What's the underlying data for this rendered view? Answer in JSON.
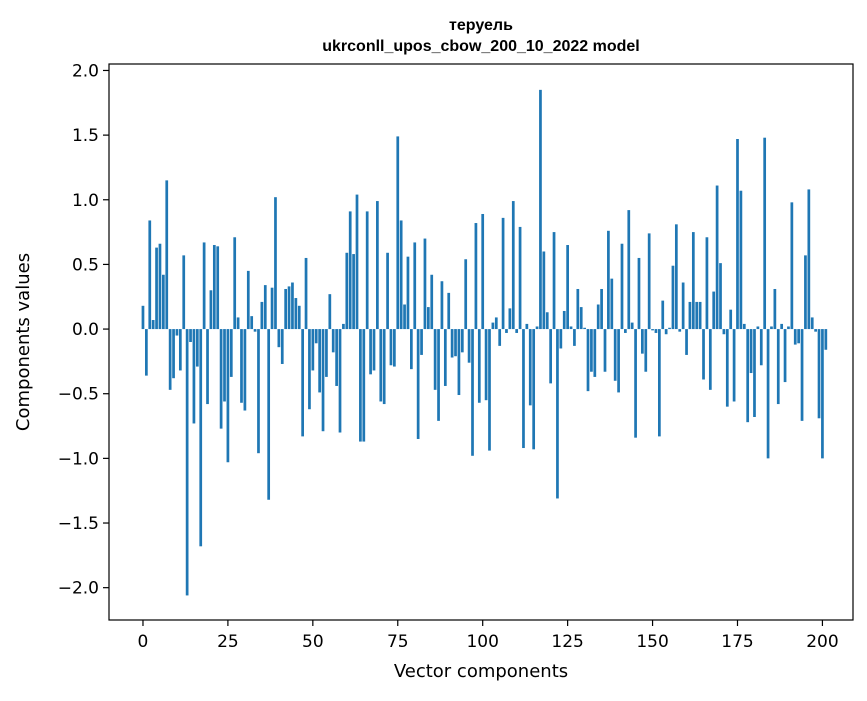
{
  "chart_data": {
    "type": "bar",
    "title_lines": [
      "теруель",
      "ukrconll_upos_cbow_200_10_2022 model"
    ],
    "xlabel": "Vector components",
    "ylabel": "Components values",
    "xlim": [
      -10,
      209
    ],
    "ylim": [
      -2.25,
      2.05
    ],
    "x_ticks": [
      0,
      25,
      50,
      75,
      100,
      125,
      150,
      175,
      200
    ],
    "y_ticks": [
      2.0,
      1.5,
      1.0,
      0.5,
      0.0,
      -0.5,
      -1.0,
      -1.5,
      -2.0
    ],
    "y_tick_labels": [
      "2.0",
      "1.5",
      "1.0",
      "0.5",
      "0.0",
      "−0.5",
      "−1.0",
      "−1.5",
      "−2.0"
    ],
    "grid": false,
    "bar_color": "#1f77b4",
    "values": [
      0.18,
      -0.36,
      0.84,
      0.07,
      0.63,
      0.66,
      0.42,
      1.15,
      -0.47,
      -0.38,
      -0.05,
      -0.32,
      0.57,
      -2.06,
      -0.1,
      -0.73,
      -0.29,
      -1.68,
      0.67,
      -0.58,
      0.3,
      0.65,
      0.64,
      -0.77,
      -0.56,
      -1.03,
      -0.37,
      0.71,
      0.09,
      -0.57,
      -0.63,
      0.45,
      0.1,
      -0.02,
      -0.96,
      0.21,
      0.34,
      -1.32,
      0.32,
      1.02,
      -0.14,
      -0.27,
      0.31,
      0.33,
      0.36,
      0.24,
      0.18,
      -0.83,
      0.55,
      -0.62,
      -0.32,
      -0.11,
      -0.49,
      -0.79,
      -0.37,
      0.27,
      -0.18,
      -0.44,
      -0.8,
      0.04,
      0.59,
      0.91,
      0.58,
      1.04,
      -0.87,
      -0.87,
      0.91,
      -0.35,
      -0.32,
      0.99,
      -0.56,
      -0.58,
      0.59,
      -0.28,
      -0.29,
      1.49,
      0.84,
      0.19,
      0.56,
      -0.31,
      0.67,
      -0.85,
      -0.2,
      0.7,
      0.17,
      0.42,
      -0.47,
      -0.71,
      0.37,
      -0.44,
      0.28,
      -0.22,
      -0.21,
      -0.51,
      -0.18,
      0.54,
      -0.26,
      -0.98,
      0.82,
      -0.57,
      0.89,
      -0.55,
      -0.94,
      0.05,
      0.09,
      -0.13,
      0.86,
      -0.03,
      0.16,
      0.99,
      -0.03,
      0.79,
      -0.92,
      0.04,
      -0.59,
      -0.93,
      0.02,
      1.85,
      0.6,
      0.13,
      -0.42,
      0.75,
      -1.31,
      -0.15,
      0.14,
      0.65,
      0.02,
      -0.13,
      0.31,
      0.17,
      0.01,
      -0.48,
      -0.33,
      -0.37,
      0.19,
      0.31,
      -0.33,
      0.76,
      0.39,
      -0.4,
      -0.49,
      0.66,
      -0.03,
      0.92,
      0.05,
      -0.84,
      0.55,
      -0.19,
      -0.33,
      0.74,
      -0.01,
      -0.03,
      -0.83,
      0.22,
      -0.04,
      0.01,
      0.49,
      0.81,
      -0.02,
      0.36,
      -0.2,
      0.21,
      0.75,
      0.21,
      0.21,
      -0.39,
      0.71,
      -0.47,
      0.29,
      1.11,
      0.51,
      -0.04,
      -0.6,
      0.15,
      -0.56,
      1.47,
      1.07,
      0.04,
      -0.72,
      -0.34,
      -0.68,
      0.02,
      -0.28,
      1.48,
      -1.0,
      0.02,
      0.31,
      -0.58,
      0.04,
      -0.41,
      0.02,
      0.98,
      -0.12,
      -0.11,
      -0.71,
      0.57,
      1.08,
      0.09,
      -0.02,
      -0.69,
      -1.0,
      -0.16
    ]
  }
}
